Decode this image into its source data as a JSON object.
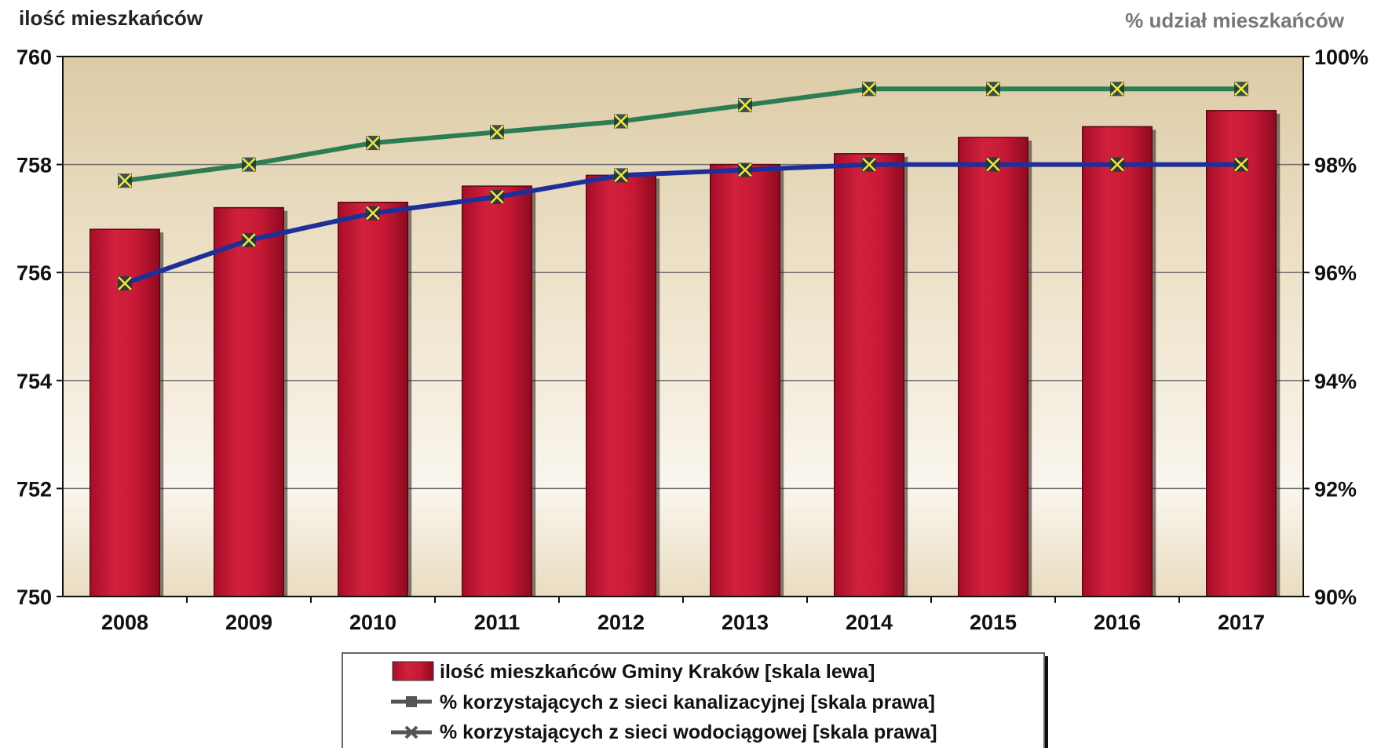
{
  "chart_data": {
    "type": "bar",
    "categories": [
      "2008",
      "2009",
      "2010",
      "2011",
      "2012",
      "2013",
      "2014",
      "2015",
      "2016",
      "2017"
    ],
    "series": [
      {
        "name": "ilość mieszkańców Gminy Kraków [skala lewa]",
        "type": "bar",
        "axis": "left",
        "color": "#c41230",
        "values": [
          756.8,
          757.2,
          757.3,
          757.6,
          757.8,
          758.0,
          758.2,
          758.5,
          758.7,
          759.0
        ]
      },
      {
        "name": "% korzystających z sieci kanalizacyjnej [skala prawa]",
        "type": "line",
        "axis": "right",
        "color": "#1f2f9a",
        "marker": "square",
        "values": [
          95.8,
          96.6,
          97.1,
          97.4,
          97.8,
          97.9,
          98.0,
          98.0,
          98.0,
          98.0
        ]
      },
      {
        "name": "% korzystających z sieci wodociągowej [skala prawa]",
        "type": "line",
        "axis": "right",
        "color": "#2e7d52",
        "marker": "x",
        "values": [
          97.7,
          98.0,
          98.4,
          98.6,
          98.8,
          99.1,
          99.4,
          99.4,
          99.4,
          99.4
        ]
      }
    ],
    "ylabel_left": "ilość mieszkańców",
    "ylabel_right": "% udział mieszkańców",
    "ylim_left": [
      750,
      760
    ],
    "ylim_right": [
      90,
      100
    ],
    "yticks_left": [
      "750",
      "752",
      "754",
      "756",
      "758",
      "760"
    ],
    "yticks_right": [
      "90%",
      "92%",
      "94%",
      "96%",
      "98%",
      "100%"
    ],
    "grid": true,
    "legend_position": "bottom",
    "background": "#e8d9b8",
    "marker_highlight_color": "#f2e64a"
  }
}
